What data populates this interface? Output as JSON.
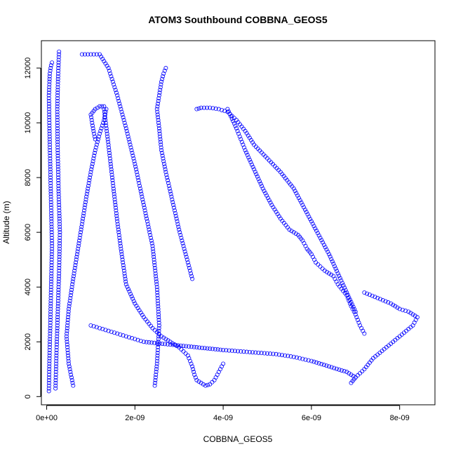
{
  "chart_data": {
    "type": "scatter",
    "title": "ATOM3 Southbound COBBNA_GEOS5",
    "xlabel": "COBBNA_GEOS5",
    "ylabel": "Altitude (m)",
    "xlim": [
      -1.2e-10,
      8.8e-09
    ],
    "ylim": [
      -300,
      13000
    ],
    "xticks": [
      0,
      2e-09,
      4e-09,
      6e-09,
      8e-09
    ],
    "xtick_labels": [
      "0e+00",
      "2e-09",
      "4e-09",
      "6e-09",
      "8e-09"
    ],
    "yticks": [
      0,
      2000,
      4000,
      6000,
      8000,
      10000,
      12000
    ],
    "ytick_labels": [
      "0",
      "2000",
      "4000",
      "6000",
      "8000",
      "10000",
      "12000"
    ],
    "marker": "open-circle",
    "color": "#0000ff",
    "grid": false,
    "legend": "none",
    "series": [
      {
        "x": [
          5e-11,
          6e-11,
          8e-11,
          1e-10,
          1.2e-10,
          1e-10,
          8e-11,
          6e-11,
          5e-11,
          7e-11,
          1e-10,
          1.2e-10
        ],
        "y": [
          200,
          1200,
          2500,
          4000,
          5500,
          7000,
          8500,
          10000,
          11000,
          11800,
          12100,
          12200
        ]
      },
      {
        "x": [
          2e-10,
          2.2e-10,
          2.5e-10,
          2.8e-10,
          3e-10,
          2.7e-10,
          2.5e-10,
          2.4e-10,
          2.6e-10,
          2.8e-10
        ],
        "y": [
          300,
          1500,
          3000,
          4500,
          6000,
          7500,
          9000,
          10500,
          11800,
          12600
        ]
      },
      {
        "x": [
          6e-10,
          5e-10,
          4.5e-10,
          5e-10,
          6e-10,
          7e-10,
          8e-10,
          9e-10,
          1e-09,
          1.1e-09,
          1.2e-09,
          1.3e-09,
          1.35e-09,
          1.3e-09,
          1.2e-09,
          1.1e-09,
          1e-09,
          1.05e-09,
          1.1e-09
        ],
        "y": [
          400,
          1200,
          2200,
          3200,
          4300,
          5300,
          6300,
          7300,
          8200,
          9000,
          9600,
          10100,
          10500,
          10600,
          10600,
          10500,
          10300,
          9800,
          9400
        ]
      },
      {
        "x": [
          1.3e-09,
          1.4e-09,
          1.5e-09,
          1.6e-09,
          1.7e-09,
          1.8e-09,
          2e-09,
          2.2e-09,
          2.4e-09,
          2.6e-09,
          2.8e-09,
          3e-09,
          3.2e-09,
          3.3e-09,
          3.35e-09,
          3.4e-09,
          3.5e-09,
          3.6e-09,
          3.7e-09,
          3.8e-09,
          3.9e-09,
          4e-09
        ],
        "y": [
          10500,
          9200,
          7800,
          6400,
          5200,
          4100,
          3400,
          2900,
          2500,
          2200,
          2000,
          1800,
          1500,
          1100,
          800,
          600,
          500,
          400,
          450,
          600,
          900,
          1200
        ]
      },
      {
        "x": [
          4.1e-09,
          4.3e-09,
          4.5e-09,
          4.7e-09,
          4.9e-09,
          5.1e-09,
          5.3e-09,
          5.5e-09,
          5.7e-09,
          5.8e-09,
          5.9e-09,
          6e-09,
          6.1e-09,
          6.3e-09,
          6.5e-09,
          6.6e-09,
          6.8e-09,
          6.9e-09,
          7e-09,
          7.1e-09,
          7.2e-09
        ],
        "y": [
          10500,
          9800,
          9000,
          8300,
          7600,
          7000,
          6500,
          6100,
          5900,
          5700,
          5400,
          5200,
          4900,
          4600,
          4400,
          4100,
          3700,
          3300,
          3000,
          2600,
          2300
        ]
      },
      {
        "x": [
          2.7e-09,
          2.65e-09,
          2.6e-09,
          2.55e-09,
          2.5e-09,
          2.55e-09,
          2.6e-09,
          2.7e-09,
          2.8e-09,
          2.9e-09,
          3e-09,
          3.1e-09,
          3.2e-09,
          3.3e-09
        ],
        "y": [
          12000,
          11800,
          11500,
          11000,
          10500,
          9800,
          9000,
          8200,
          7500,
          6800,
          6100,
          5500,
          4900,
          4300
        ]
      },
      {
        "x": [
          3.4e-09,
          3.5e-09,
          3.7e-09,
          3.9e-09,
          4.1e-09,
          4.3e-09,
          4.5e-09,
          4.7e-09,
          5e-09,
          5.3e-09,
          5.6e-09,
          5.8e-09,
          6e-09,
          6.2e-09,
          6.4e-09,
          6.6e-09,
          6.8e-09,
          7e-09
        ],
        "y": [
          10500,
          10550,
          10550,
          10500,
          10400,
          10100,
          9700,
          9200,
          8700,
          8200,
          7600,
          7000,
          6400,
          5800,
          5200,
          4500,
          3800,
          3100
        ]
      },
      {
        "x": [
          7.2e-09,
          7.5e-09,
          7.8e-09,
          8e-09,
          8.2e-09,
          8.4e-09,
          8.3e-09,
          8e-09,
          7.7e-09,
          7.4e-09,
          7.2e-09,
          7e-09,
          6.9e-09
        ],
        "y": [
          3800,
          3600,
          3400,
          3200,
          3100,
          2900,
          2600,
          2200,
          1800,
          1400,
          1000,
          700,
          500
        ]
      },
      {
        "x": [
          1e-09,
          1.2e-09,
          1.4e-09,
          1.6e-09,
          1.8e-09,
          2e-09,
          2.2e-09,
          2.5e-09,
          2.8e-09,
          3.1e-09,
          3.4e-09,
          3.7e-09,
          4e-09,
          4.4e-09,
          4.8e-09,
          5.2e-09,
          5.6e-09,
          6e-09,
          6.4e-09,
          6.8e-09,
          7e-09
        ],
        "y": [
          2600,
          2500,
          2400,
          2300,
          2200,
          2100,
          2000,
          1950,
          1900,
          1850,
          1800,
          1750,
          1700,
          1650,
          1600,
          1550,
          1450,
          1300,
          1100,
          900,
          700
        ]
      },
      {
        "x": [
          8e-10,
          1e-09,
          1.2e-09,
          1.4e-09,
          1.6e-09,
          1.8e-09,
          2e-09,
          2.2e-09,
          2.4e-09,
          2.5e-09,
          2.55e-09,
          2.5e-09,
          2.45e-09
        ],
        "y": [
          12500,
          12500,
          12500,
          12000,
          11000,
          9800,
          8500,
          7000,
          5500,
          4000,
          2600,
          1200,
          400
        ]
      }
    ]
  }
}
